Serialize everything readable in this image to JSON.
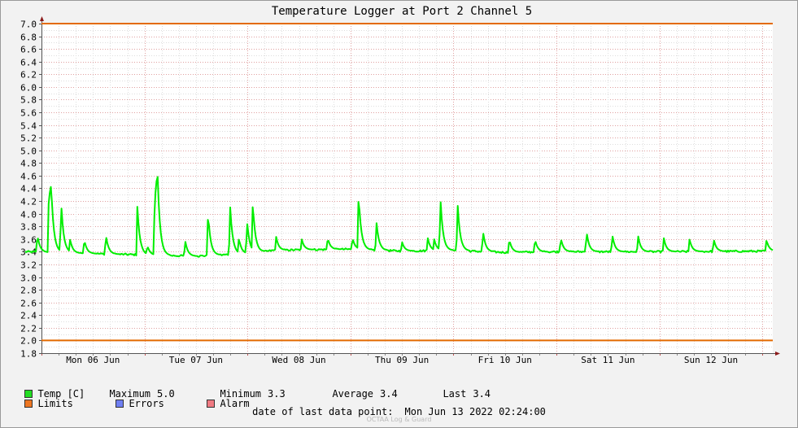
{
  "chart_data": {
    "type": "line",
    "title": "Temperature Logger at Port 2 Channel 5",
    "ylim": [
      1.8,
      7.0
    ],
    "yticks": [
      "1.8",
      "2.0",
      "2.2",
      "2.4",
      "2.6",
      "2.8",
      "3.0",
      "3.2",
      "3.4",
      "3.6",
      "3.8",
      "4.0",
      "4.2",
      "4.4",
      "4.6",
      "4.8",
      "5.0",
      "5.2",
      "5.4",
      "5.6",
      "5.8",
      "6.0",
      "6.2",
      "6.4",
      "6.6",
      "6.8",
      "7.0"
    ],
    "xlim": [
      "Mon Jun 06 00:00",
      "Mon Jun 13 02:24"
    ],
    "x_tick_labels": [
      "Mon 06 Jun",
      "Tue 07 Jun",
      "Wed 08 Jun",
      "Thu 09 Jun",
      "Fri 10 Jun",
      "Sat 11 Jun",
      "Sun 12 Jun"
    ],
    "grid": true,
    "limits": {
      "upper": 7.0,
      "lower": 2.0,
      "color": "#e36a00"
    },
    "series": [
      {
        "name": "Temp [C]",
        "color": "#00ee00",
        "baseline": [
          [
            "Jun 05 20:12",
            3.4
          ],
          [
            "Jun 06 12:00",
            3.37
          ],
          [
            "Jun 07 00:00",
            3.35
          ],
          [
            "Jun 07 12:00",
            3.33
          ],
          [
            "Jun 08 00:00",
            3.37
          ],
          [
            "Jun 08 06:00",
            3.42
          ],
          [
            "Jun 08 12:00",
            3.43
          ],
          [
            "Jun 09 00:00",
            3.44
          ],
          [
            "Jun 09 12:00",
            3.41
          ],
          [
            "Jun 10 00:00",
            3.42
          ],
          [
            "Jun 10 12:00",
            3.39
          ],
          [
            "Jun 11 00:00",
            3.4
          ],
          [
            "Jun 12 00:00",
            3.4
          ],
          [
            "Jun 13 02:24",
            3.41
          ]
        ],
        "spikes": [
          [
            "Jun 05 23:02",
            3.67
          ],
          [
            "Jun 06 01:46",
            4.6
          ],
          [
            "Jun 06 02:12",
            4.55
          ],
          [
            "Jun 06 04:34",
            4.2
          ],
          [
            "Jun 06 06:40",
            3.6
          ],
          [
            "Jun 06 09:58",
            3.59
          ],
          [
            "Jun 06 15:00",
            3.67
          ],
          [
            "Jun 06 22:20",
            4.12
          ],
          [
            "Jun 07 00:40",
            3.5
          ],
          [
            "Jun 07 02:26",
            4.56
          ],
          [
            "Jun 07 02:53",
            5.0
          ],
          [
            "Jun 07 09:28",
            3.58
          ],
          [
            "Jun 07 14:48",
            4.03
          ],
          [
            "Jun 07 19:56",
            4.16
          ],
          [
            "Jun 07 22:00",
            3.62
          ],
          [
            "Jun 07 23:53",
            3.9
          ],
          [
            "Jun 08 01:14",
            4.19
          ],
          [
            "Jun 08 06:40",
            3.64
          ],
          [
            "Jun 08 12:38",
            3.6
          ],
          [
            "Jun 08 18:42",
            3.62
          ],
          [
            "Jun 09 00:28",
            3.62
          ],
          [
            "Jun 09 01:53",
            4.33
          ],
          [
            "Jun 09 06:02",
            3.88
          ],
          [
            "Jun 09 12:00",
            3.56
          ],
          [
            "Jun 09 18:00",
            3.62
          ],
          [
            "Jun 09 19:30",
            3.6
          ],
          [
            "Jun 09 20:56",
            4.28
          ],
          [
            "Jun 09 21:30",
            3.6
          ],
          [
            "Jun 10 00:56",
            4.19
          ],
          [
            "Jun 10 06:52",
            3.73
          ],
          [
            "Jun 10 13:00",
            3.6
          ],
          [
            "Jun 10 19:00",
            3.6
          ],
          [
            "Jun 11 01:00",
            3.62
          ],
          [
            "Jun 11 07:00",
            3.72
          ],
          [
            "Jun 11 13:00",
            3.67
          ],
          [
            "Jun 11 19:00",
            3.66
          ],
          [
            "Jun 12 01:00",
            3.62
          ],
          [
            "Jun 12 07:00",
            3.6
          ],
          [
            "Jun 12 12:38",
            3.6
          ],
          [
            "Jun 13 00:56",
            3.59
          ]
        ]
      }
    ]
  },
  "legend": {
    "temp": {
      "label": "Temp [C]",
      "color": "#22dd22"
    },
    "limits": {
      "label": "Limits",
      "color": "#ee7722"
    },
    "errors": {
      "label": "Errors",
      "color": "#6f7ff2"
    },
    "alarm": {
      "label": "Alarm",
      "color": "#f07a82"
    }
  },
  "stats": {
    "maximum_label": "Maximum",
    "maximum_value": "5.0",
    "minimum_label": "Minimum",
    "minimum_value": "3.3",
    "average_label": "Average",
    "average_value": "3.4",
    "last_label": "Last",
    "last_value": "3.4"
  },
  "footer": {
    "label": "date of last data point:",
    "value": "Mon Jun 13 2022 02:24:00"
  },
  "watermark": "OCTAA Log & Guard"
}
